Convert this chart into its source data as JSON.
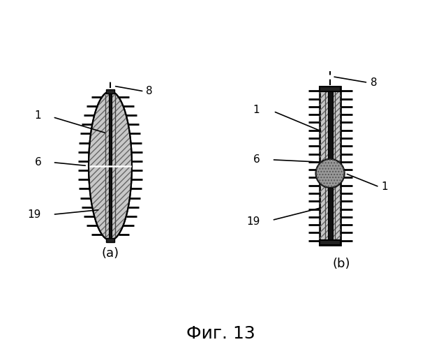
{
  "bg_color": "#ffffff",
  "title": "Фиг. 13",
  "title_fontsize": 18,
  "label_a": "(a)",
  "label_b": "(b)",
  "label_fontsize": 13,
  "electrode_fill": "#c8c8c8",
  "spine_color": "#111111",
  "tick_color": "#000000",
  "cap_color": "#222222"
}
